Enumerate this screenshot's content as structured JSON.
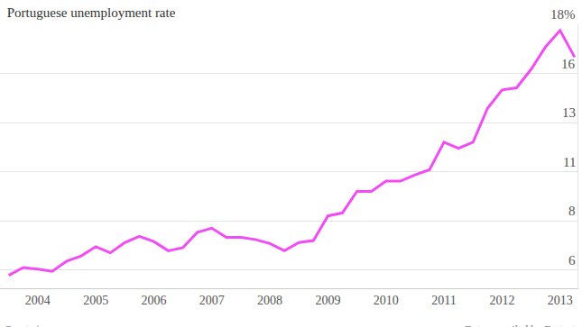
{
  "chart_data": {
    "type": "line",
    "title": "Portuguese unemployment rate",
    "source": "Quartz | qz.com",
    "credit": "Data compiled by Factset",
    "color": "#f24cf5",
    "grid": true,
    "x": [
      2004,
      2004.25,
      2004.5,
      2004.75,
      2005,
      2005.25,
      2005.5,
      2005.75,
      2006,
      2006.25,
      2006.5,
      2006.75,
      2007,
      2007.25,
      2007.5,
      2007.75,
      2008,
      2008.25,
      2008.5,
      2008.75,
      2009,
      2009.25,
      2009.5,
      2009.75,
      2010,
      2010.25,
      2010.5,
      2010.75,
      2011,
      2011.25,
      2011.5,
      2011.75,
      2012,
      2012.25,
      2012.5,
      2012.75,
      2013,
      2013.25,
      2013.5,
      2013.75
    ],
    "values": [
      5.75,
      6.13,
      6.05,
      5.95,
      6.45,
      6.7,
      7.15,
      6.85,
      7.35,
      7.65,
      7.4,
      6.95,
      7.1,
      7.85,
      8.05,
      7.6,
      7.6,
      7.5,
      7.3,
      6.95,
      7.35,
      7.45,
      8.65,
      8.8,
      9.85,
      9.85,
      10.35,
      10.35,
      10.65,
      10.9,
      12.25,
      11.95,
      12.25,
      13.9,
      14.8,
      14.9,
      15.8,
      16.9,
      17.7,
      16.4
    ],
    "xlim": [
      2003.85,
      2013.8
    ],
    "xticks": [
      {
        "value": 2004.5,
        "label": "2004"
      },
      {
        "value": 2005.5,
        "label": "2005"
      },
      {
        "value": 2006.5,
        "label": "2006"
      },
      {
        "value": 2007.5,
        "label": "2007"
      },
      {
        "value": 2008.5,
        "label": "2008"
      },
      {
        "value": 2009.5,
        "label": "2009"
      },
      {
        "value": 2010.5,
        "label": "2010"
      },
      {
        "value": 2011.5,
        "label": "2011"
      },
      {
        "value": 2012.5,
        "label": "2012"
      },
      {
        "value": 2013.5,
        "label": "2013"
      }
    ],
    "ylim": [
      5.12,
      18
    ],
    "yticks": [
      6,
      {
        "value": 8.4,
        "label": "8"
      },
      {
        "value": 10.8,
        "label": "11"
      },
      {
        "value": 13.2,
        "label": "13"
      },
      {
        "value": 15.6,
        "label": "16"
      },
      {
        "value": 18,
        "label": "18%"
      }
    ]
  }
}
